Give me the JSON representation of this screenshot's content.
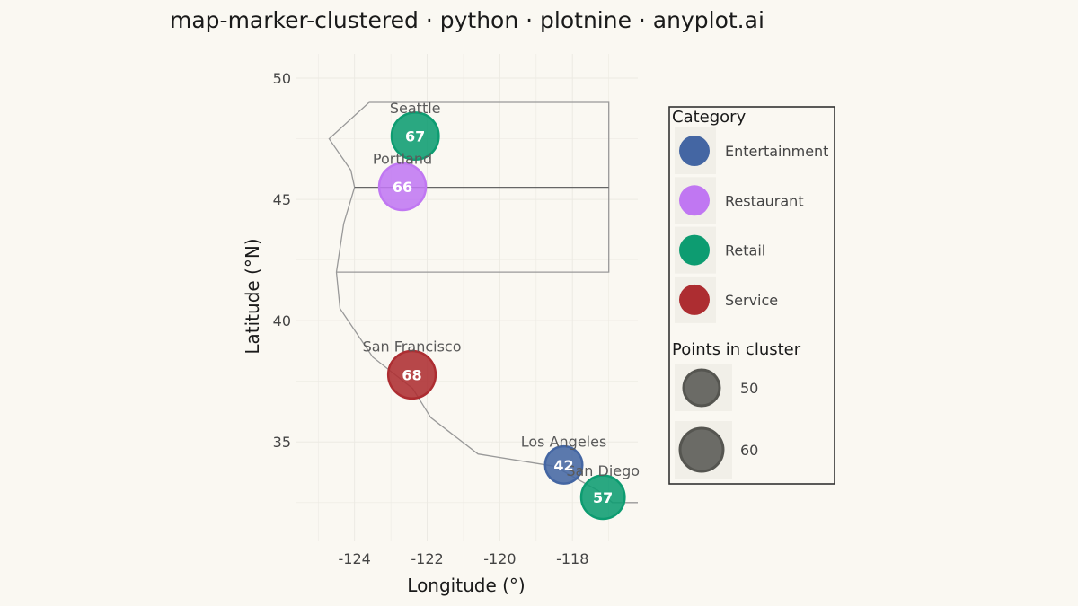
{
  "title": "map-marker-clustered · python · plotnine · anyplot.ai",
  "colors": {
    "background": "#FAF8F2",
    "grid": "#ECEAE3",
    "outline": "#999999",
    "inner_line": "#666666",
    "legend_key_bg": "#F1EFE8",
    "size_key": "#6B6B66"
  },
  "chart_data": {
    "type": "scatter",
    "title": "map-marker-clustered · python · plotnine · anyplot.ai",
    "xlabel": "Longitude (°)",
    "ylabel": "Latitude (°N)",
    "xlim": [
      -125.6,
      -116.2
    ],
    "ylim": [
      30.9,
      51.0
    ],
    "xticks": [
      -124,
      -122,
      -120,
      -118
    ],
    "xtick_labels": [
      "-124",
      "-122",
      "-120",
      "-118"
    ],
    "yticks": [
      35,
      40,
      45,
      50
    ],
    "ytick_labels": [
      "35",
      "40",
      "45",
      "50"
    ],
    "grid": true,
    "legend_position": "right",
    "categories": [
      {
        "name": "Entertainment",
        "color": "#4466A3"
      },
      {
        "name": "Restaurant",
        "color": "#C077F2"
      },
      {
        "name": "Retail",
        "color": "#0D9C71"
      },
      {
        "name": "Service",
        "color": "#AD2D31"
      }
    ],
    "points": [
      {
        "city": "Seattle",
        "x": -122.33,
        "y": 47.61,
        "count": 67,
        "count_label": "67",
        "category": "Retail"
      },
      {
        "city": "Portland",
        "x": -122.68,
        "y": 45.52,
        "count": 66,
        "count_label": "66",
        "category": "Restaurant"
      },
      {
        "city": "San Francisco",
        "x": -122.42,
        "y": 37.77,
        "count": 68,
        "count_label": "68",
        "category": "Service"
      },
      {
        "city": "Los Angeles",
        "x": -118.24,
        "y": 34.05,
        "count": 42,
        "count_label": "42",
        "category": "Entertainment"
      },
      {
        "city": "San Diego",
        "x": -117.16,
        "y": 32.72,
        "count": 57,
        "count_label": "57",
        "category": "Retail"
      }
    ],
    "size_legend": [
      {
        "value": 50,
        "label": "50"
      },
      {
        "value": 60,
        "label": "60"
      }
    ],
    "legend_titles": {
      "color": "Category",
      "size": "Points in cluster"
    },
    "outline_coast": [
      [
        -123.6,
        49.0
      ],
      [
        -124.7,
        47.5
      ],
      [
        -124.1,
        46.2
      ],
      [
        -124.0,
        45.5
      ],
      [
        -124.3,
        44.0
      ],
      [
        -124.5,
        42.0
      ],
      [
        -124.4,
        40.5
      ],
      [
        -123.5,
        38.5
      ],
      [
        -122.4,
        37.2
      ],
      [
        -121.9,
        36.0
      ],
      [
        -120.6,
        34.5
      ],
      [
        -118.5,
        34.0
      ],
      [
        -117.3,
        33.0
      ],
      [
        -116.9,
        32.5
      ],
      [
        -116.2,
        32.5
      ]
    ],
    "outline_state": [
      [
        -123.6,
        49.0
      ],
      [
        -117.0,
        49.0
      ],
      [
        -117.0,
        42.0
      ],
      [
        -124.5,
        42.0
      ]
    ],
    "outline_border": [
      [
        -124.0,
        45.5
      ],
      [
        -117.0,
        45.5
      ]
    ]
  }
}
